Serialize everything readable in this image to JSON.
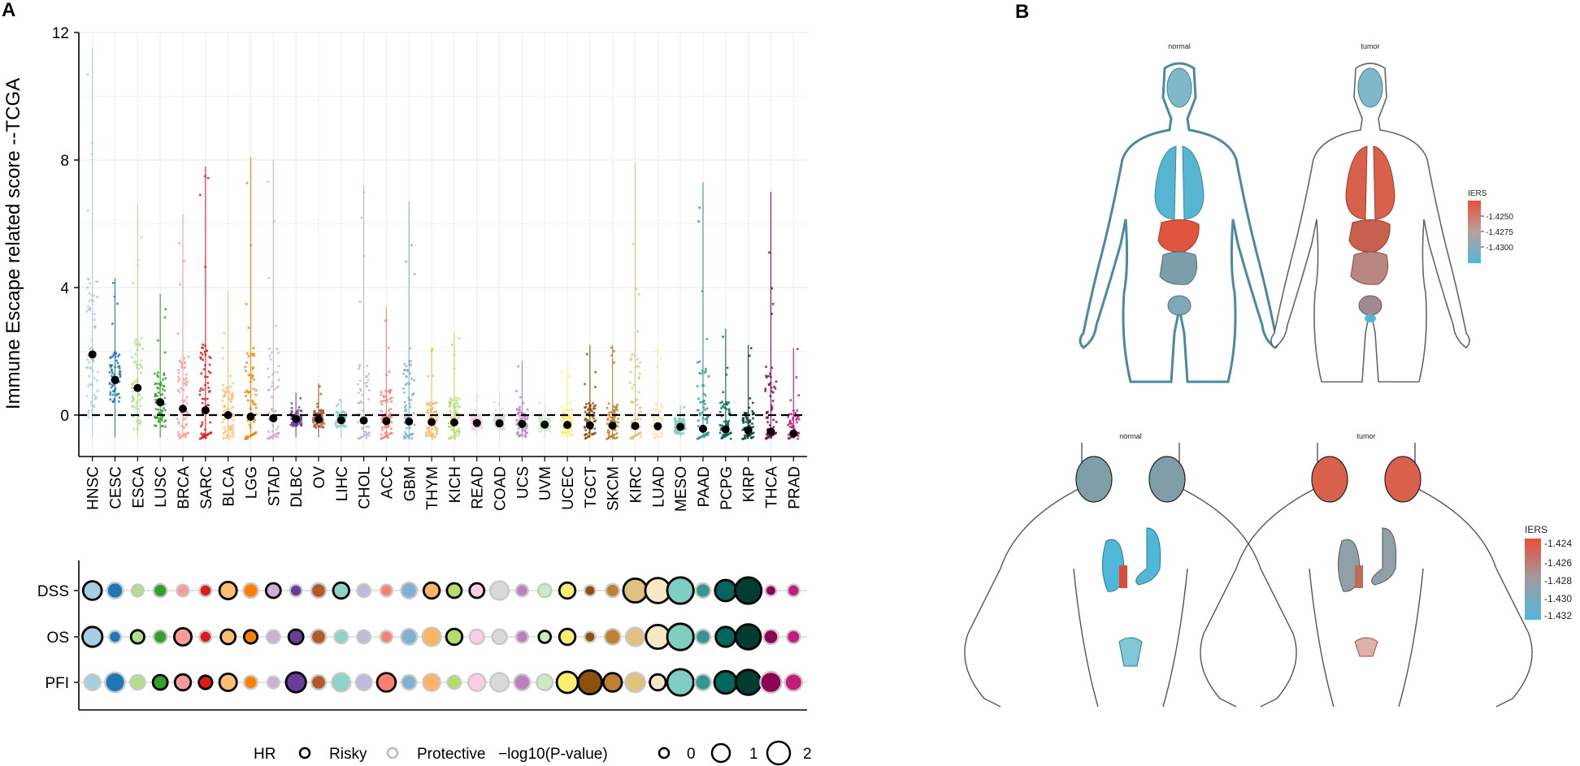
{
  "panel_a": {
    "letter": "A"
  },
  "panel_b": {
    "letter": "B"
  },
  "chart_data": [
    {
      "type": "scatter",
      "title": "",
      "ylabel": "Immune Escape related score --TCGA",
      "xlabel": "",
      "ylim": [
        -1.3,
        12
      ],
      "yticks": [
        0,
        4,
        8,
        12
      ],
      "reference_line": 0,
      "categories": [
        "HNSC",
        "CESC",
        "ESCA",
        "LUSC",
        "BRCA",
        "SARC",
        "BLCA",
        "LGG",
        "STAD",
        "DLBC",
        "OV",
        "LIHC",
        "CHOL",
        "ACC",
        "GBM",
        "THYM",
        "KICH",
        "READ",
        "COAD",
        "UCS",
        "UVM",
        "UCEC",
        "TGCT",
        "SKCM",
        "KIRC",
        "LUAD",
        "MESO",
        "PAAD",
        "PCPG",
        "KIRP",
        "THCA",
        "PRAD"
      ],
      "colors": [
        "#a6cee3",
        "#1f78b4",
        "#b2df8a",
        "#33a02c",
        "#fb9a99",
        "#e31a1c",
        "#fdbf6f",
        "#ff7f00",
        "#cab2d6",
        "#6a3d9a",
        "#b15928",
        "#8dd3c7",
        "#bebada",
        "#fb8072",
        "#80b1d3",
        "#fdb462",
        "#b3de69",
        "#fccde5",
        "#d9d9d9",
        "#bc80bd",
        "#ccebc5",
        "#ffed6f",
        "#8c510a",
        "#bf812d",
        "#dfc27d",
        "#f6e8c3",
        "#80cdc1",
        "#35978f",
        "#01665e",
        "#003c30",
        "#8e0152",
        "#c51b7d"
      ],
      "medians": [
        1.9,
        1.1,
        0.85,
        0.4,
        0.2,
        0.15,
        0.0,
        -0.05,
        -0.1,
        -0.12,
        -0.14,
        -0.16,
        -0.17,
        -0.19,
        -0.2,
        -0.22,
        -0.23,
        -0.25,
        -0.26,
        -0.28,
        -0.3,
        -0.31,
        -0.32,
        -0.33,
        -0.34,
        -0.35,
        -0.37,
        -0.43,
        -0.45,
        -0.48,
        -0.52,
        -0.58
      ],
      "maxima": [
        11.5,
        4.3,
        6.6,
        3.8,
        6.3,
        7.8,
        3.9,
        8.1,
        8.0,
        0.7,
        1.0,
        0.5,
        7.2,
        3.4,
        6.7,
        2.1,
        2.6,
        0.7,
        0.7,
        1.7,
        0.4,
        1.5,
        2.2,
        2.2,
        7.9,
        2.2,
        0.3,
        7.3,
        2.7,
        2.2,
        7.0,
        2.1
      ]
    },
    {
      "type": "bubble",
      "rows": [
        "DSS",
        "OS",
        "PFI"
      ],
      "categories": [
        "HNSC",
        "CESC",
        "ESCA",
        "LUSC",
        "BRCA",
        "SARC",
        "BLCA",
        "LGG",
        "STAD",
        "DLBC",
        "OV",
        "LIHC",
        "CHOL",
        "ACC",
        "GBM",
        "THYM",
        "KICH",
        "READ",
        "COAD",
        "UCS",
        "UVM",
        "UCEC",
        "TGCT",
        "SKCM",
        "KIRC",
        "LUAD",
        "MESO",
        "PAAD",
        "PCPG",
        "KIRP",
        "THCA",
        "PRAD"
      ],
      "neglog10p": {
        "DSS": [
          0.8,
          0.6,
          0.3,
          0.4,
          0.3,
          0.3,
          0.7,
          0.5,
          0.5,
          0.3,
          0.5,
          0.6,
          0.4,
          0.3,
          0.6,
          0.6,
          0.5,
          0.5,
          0.8,
          0.3,
          0.4,
          0.6,
          0.2,
          0.4,
          1.2,
          1.3,
          1.4,
          0.5,
          1.0,
          1.4,
          0.2,
          0.3
        ],
        "OS": [
          0.9,
          0.3,
          0.4,
          0.4,
          0.7,
          0.3,
          0.5,
          0.4,
          0.4,
          0.5,
          0.5,
          0.4,
          0.4,
          0.3,
          0.6,
          0.8,
          0.6,
          0.5,
          0.5,
          0.3,
          0.3,
          0.6,
          0.2,
          0.6,
          0.8,
          1.2,
          1.4,
          0.5,
          0.9,
          1.3,
          0.5,
          0.4
        ],
        "PFI": [
          0.6,
          0.9,
          0.5,
          0.5,
          0.6,
          0.4,
          0.7,
          0.4,
          0.3,
          0.9,
          0.5,
          0.8,
          0.6,
          0.8,
          0.5,
          0.7,
          0.4,
          0.7,
          0.8,
          0.6,
          0.6,
          1.0,
          1.2,
          0.8,
          0.9,
          0.6,
          1.4,
          0.6,
          1.1,
          1.3,
          1.0,
          0.7
        ]
      },
      "risky": {
        "DSS": [
          1,
          0,
          0,
          0,
          0,
          0,
          1,
          0,
          1,
          0,
          0,
          1,
          0,
          0,
          0,
          1,
          1,
          1,
          0,
          0,
          0,
          1,
          0,
          0,
          1,
          1,
          1,
          0,
          1,
          1,
          0,
          0
        ],
        "OS": [
          1,
          0,
          1,
          0,
          1,
          0,
          1,
          1,
          0,
          1,
          0,
          0,
          0,
          0,
          0,
          0,
          1,
          0,
          0,
          0,
          1,
          1,
          0,
          0,
          0,
          1,
          1,
          0,
          1,
          1,
          0,
          0
        ],
        "PFI": [
          0,
          0,
          0,
          1,
          1,
          1,
          1,
          0,
          0,
          1,
          0,
          0,
          0,
          1,
          0,
          0,
          0,
          0,
          0,
          0,
          0,
          1,
          1,
          1,
          0,
          1,
          1,
          0,
          1,
          1,
          0,
          0
        ]
      },
      "legend": {
        "hr_title": "HR",
        "risky_label": "Risky",
        "protective_label": "Protective",
        "size_title": "−log10(P-value)",
        "size_levels": [
          "0",
          "1",
          "2"
        ]
      }
    },
    {
      "type": "anatomy-heatmap",
      "title_left": "normal",
      "title_right": "tumor",
      "legend_title": "IERS",
      "legend_ticks": [
        "-1.4250",
        "-1.4275",
        "-1.4300"
      ]
    },
    {
      "type": "anatomy-heatmap",
      "title_left": "normal",
      "title_right": "tumor",
      "legend_title": "IERS",
      "legend_ticks": [
        "-1.424",
        "-1.426",
        "-1.428",
        "-1.430",
        "-1.432"
      ]
    }
  ]
}
